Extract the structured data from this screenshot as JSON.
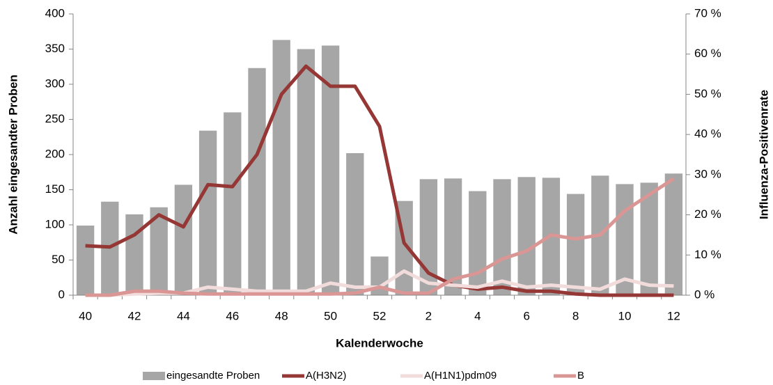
{
  "chart_data": {
    "type": "bar-line",
    "xlabel": "Kalenderwoche",
    "ylabel": "Anzahl eingesandter Proben",
    "y2label": "Influenza-Positivenrate",
    "categories": [
      "40",
      null,
      "42",
      null,
      "44",
      null,
      "46",
      null,
      "48",
      null,
      "50",
      null,
      "52",
      null,
      "2",
      null,
      "4",
      null,
      "6",
      null,
      "8",
      null,
      "10",
      null,
      "12"
    ],
    "ylim": [
      0,
      400
    ],
    "yticks": [
      0,
      50,
      100,
      150,
      200,
      250,
      300,
      350,
      400
    ],
    "y2lim": [
      0,
      70
    ],
    "y2ticks": [
      {
        "value": 0,
        "label": "0 %"
      },
      {
        "value": 10,
        "label": "10 %"
      },
      {
        "value": 20,
        "label": "20 %"
      },
      {
        "value": 30,
        "label": "30 %"
      },
      {
        "value": 40,
        "label": "40 %"
      },
      {
        "value": 50,
        "label": "50 %"
      },
      {
        "value": 60,
        "label": "60 %"
      },
      {
        "value": 70,
        "label": "70 %"
      }
    ],
    "series": [
      {
        "name": "eingesandte Proben",
        "type": "bar",
        "color": "#a6a6a6",
        "values": [
          99,
          133,
          115,
          125,
          157,
          234,
          260,
          323,
          363,
          350,
          355,
          202,
          55,
          134,
          165,
          166,
          148,
          165,
          168,
          167,
          144,
          170,
          158,
          160,
          173
        ]
      },
      {
        "name": "A(H3N2)",
        "type": "line",
        "axis": "y2",
        "color": "#953735",
        "values": [
          12.3,
          12,
          15,
          20,
          17,
          27.5,
          27,
          35,
          50,
          57,
          52,
          52,
          42,
          13,
          5.5,
          2.5,
          1.5,
          2,
          1,
          1,
          0.3,
          0,
          0,
          0,
          0
        ]
      },
      {
        "name": "A(H1N1)pdm09",
        "type": "line",
        "axis": "y2",
        "color": "#f2dcdb",
        "values": [
          0,
          0,
          0.3,
          0.5,
          0.5,
          2,
          1.5,
          1,
          1,
          1,
          3,
          2,
          2,
          6,
          3,
          2.5,
          2,
          3.5,
          2,
          2.5,
          2,
          1.5,
          4,
          2.5,
          2.3
        ]
      },
      {
        "name": "B",
        "type": "line",
        "axis": "y2",
        "color": "#d99694",
        "values": [
          0,
          0,
          1,
          1,
          0.5,
          0.3,
          0.3,
          0.3,
          0.3,
          0.3,
          0.3,
          0.5,
          2,
          0.5,
          0.5,
          4,
          5.5,
          9,
          11,
          15,
          14,
          15,
          21,
          25,
          29
        ]
      }
    ]
  }
}
